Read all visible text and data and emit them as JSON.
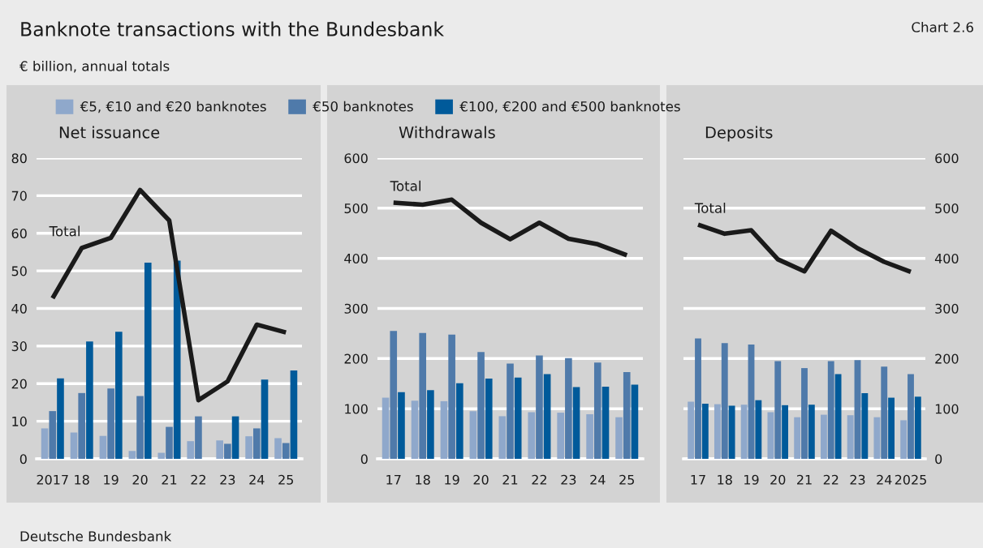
{
  "chart_data": [
    {
      "type": "bar",
      "title": "Net issuance",
      "subtitle": "€ billion, annual totals",
      "annotations": [
        "Banknote transactions with the Bundesbank",
        "Chart 2.6",
        "Deutsche Bundesbank"
      ],
      "categories": [
        "2017",
        "18",
        "19",
        "20",
        "21",
        "22",
        "23",
        "24",
        "25"
      ],
      "series": [
        {
          "name": "€5, €10 and €20 banknotes",
          "color": "#8fa8cb",
          "values": [
            8.1,
            7.0,
            6.1,
            2.1,
            1.6,
            4.7,
            4.9,
            6.0,
            5.5
          ]
        },
        {
          "name": "€50 banknotes",
          "color": "#4f7aaa",
          "values": [
            12.7,
            17.5,
            18.7,
            16.7,
            8.5,
            11.3,
            4.0,
            8.1,
            4.2
          ]
        },
        {
          "name": "€100, €200 and €500 banknotes",
          "color": "#005a9a",
          "values": [
            21.4,
            31.2,
            33.8,
            52.2,
            52.7,
            null,
            11.3,
            21.1,
            23.5
          ]
        },
        {
          "name": "Total",
          "type": "line",
          "color": "#1a1a1a",
          "values": [
            42.7,
            56.1,
            58.8,
            71.5,
            63.4,
            15.6,
            20.6,
            35.7,
            33.6
          ]
        }
      ],
      "ylim": [
        0,
        80
      ],
      "yticks": [
        0,
        10,
        20,
        30,
        40,
        50,
        60,
        70,
        80
      ],
      "grid": "y",
      "legend": "top"
    },
    {
      "type": "bar",
      "title": "Withdrawals",
      "categories": [
        "17",
        "18",
        "19",
        "20",
        "21",
        "22",
        "23",
        "24",
        "25"
      ],
      "series": [
        {
          "color": "#8fa8cb",
          "values": [
            122,
            116,
            115,
            95,
            85,
            93,
            92,
            89,
            83
          ]
        },
        {
          "color": "#4f7aaa",
          "values": [
            255,
            251,
            248,
            213,
            190,
            206,
            201,
            192,
            173
          ]
        },
        {
          "color": "#005a9a",
          "values": [
            133,
            137,
            151,
            160,
            162,
            169,
            143,
            144,
            148
          ]
        },
        {
          "name": "Total",
          "type": "line",
          "color": "#1a1a1a",
          "values": [
            511,
            507,
            517,
            471,
            438,
            471,
            439,
            428,
            406
          ]
        }
      ],
      "ylim": [
        0,
        600
      ],
      "yticks": [
        0,
        100,
        200,
        300,
        400,
        500,
        600
      ],
      "grid": "y"
    },
    {
      "type": "bar",
      "title": "Deposits",
      "categories": [
        "17",
        "18",
        "19",
        "20",
        "21",
        "22",
        "23",
        "24",
        "2025"
      ],
      "series": [
        {
          "color": "#8fa8cb",
          "values": [
            114,
            109,
            108,
            93,
            83,
            88,
            87,
            83,
            77
          ]
        },
        {
          "color": "#4f7aaa",
          "values": [
            240,
            231,
            228,
            195,
            181,
            195,
            197,
            184,
            169
          ]
        },
        {
          "color": "#005a9a",
          "values": [
            110,
            106,
            117,
            107,
            108,
            169,
            131,
            122,
            124
          ]
        },
        {
          "name": "Total",
          "type": "line",
          "color": "#1a1a1a",
          "values": [
            467,
            449,
            456,
            398,
            374,
            455,
            420,
            393,
            373
          ]
        }
      ],
      "ylim": [
        0,
        600
      ],
      "yticks": [
        0,
        100,
        200,
        300,
        400,
        500,
        600
      ],
      "grid": "y"
    }
  ]
}
